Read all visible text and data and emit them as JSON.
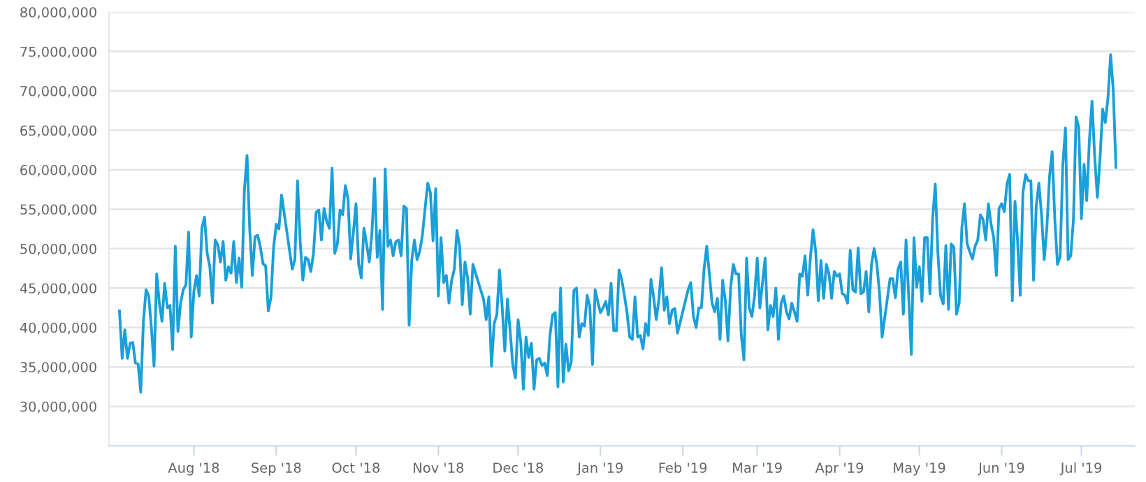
{
  "chart_data": {
    "type": "line",
    "x": [
      "2018-07-04",
      "2018-07-05",
      "2018-07-06",
      "2018-07-07",
      "2018-07-08",
      "2018-07-09",
      "2018-07-10",
      "2018-07-11",
      "2018-07-12",
      "2018-07-13",
      "2018-07-14",
      "2018-07-15",
      "2018-07-16",
      "2018-07-17",
      "2018-07-18",
      "2018-07-19",
      "2018-07-20",
      "2018-07-21",
      "2018-07-22",
      "2018-07-23",
      "2018-07-24",
      "2018-07-25",
      "2018-07-26",
      "2018-07-27",
      "2018-07-28",
      "2018-07-29",
      "2018-07-30",
      "2018-07-31",
      "2018-08-01",
      "2018-08-02",
      "2018-08-03",
      "2018-08-04",
      "2018-08-05",
      "2018-08-06",
      "2018-08-07",
      "2018-08-08",
      "2018-08-09",
      "2018-08-10",
      "2018-08-11",
      "2018-08-12",
      "2018-08-13",
      "2018-08-14",
      "2018-08-15",
      "2018-08-16",
      "2018-08-17",
      "2018-08-18",
      "2018-08-19",
      "2018-08-20",
      "2018-08-21",
      "2018-08-22",
      "2018-08-23",
      "2018-08-24",
      "2018-08-25",
      "2018-08-26",
      "2018-08-27",
      "2018-08-28",
      "2018-08-29",
      "2018-08-30",
      "2018-08-31",
      "2018-09-01",
      "2018-09-02",
      "2018-09-03",
      "2018-09-07",
      "2018-09-08",
      "2018-09-09",
      "2018-09-10",
      "2018-09-11",
      "2018-09-12",
      "2018-09-13",
      "2018-09-14",
      "2018-09-15",
      "2018-09-16",
      "2018-09-17",
      "2018-09-18",
      "2018-09-19",
      "2018-09-20",
      "2018-09-21",
      "2018-09-22",
      "2018-09-23",
      "2018-09-24",
      "2018-09-25",
      "2018-09-26",
      "2018-09-27",
      "2018-09-28",
      "2018-09-29",
      "2018-09-30",
      "2018-10-01",
      "2018-10-02",
      "2018-10-03",
      "2018-10-04",
      "2018-10-05",
      "2018-10-06",
      "2018-10-07",
      "2018-10-08",
      "2018-10-09",
      "2018-10-10",
      "2018-10-11",
      "2018-10-12",
      "2018-10-13",
      "2018-10-14",
      "2018-10-15",
      "2018-10-16",
      "2018-10-17",
      "2018-10-18",
      "2018-10-19",
      "2018-10-20",
      "2018-10-21",
      "2018-10-22",
      "2018-10-23",
      "2018-10-24",
      "2018-10-25",
      "2018-10-26",
      "2018-10-27",
      "2018-10-28",
      "2018-10-29",
      "2018-10-30",
      "2018-10-31",
      "2018-11-01",
      "2018-11-02",
      "2018-11-03",
      "2018-11-04",
      "2018-11-05",
      "2018-11-06",
      "2018-11-07",
      "2018-11-08",
      "2018-11-09",
      "2018-11-10",
      "2018-11-11",
      "2018-11-12",
      "2018-11-13",
      "2018-11-14",
      "2018-11-18",
      "2018-11-19",
      "2018-11-20",
      "2018-11-21",
      "2018-11-22",
      "2018-11-23",
      "2018-11-24",
      "2018-11-25",
      "2018-11-26",
      "2018-11-27",
      "2018-11-28",
      "2018-11-29",
      "2018-11-30",
      "2018-12-01",
      "2018-12-02",
      "2018-12-03",
      "2018-12-04",
      "2018-12-05",
      "2018-12-06",
      "2018-12-07",
      "2018-12-08",
      "2018-12-09",
      "2018-12-10",
      "2018-12-11",
      "2018-12-12",
      "2018-12-13",
      "2018-12-14",
      "2018-12-15",
      "2018-12-16",
      "2018-12-17",
      "2018-12-18",
      "2018-12-19",
      "2018-12-20",
      "2018-12-21",
      "2018-12-22",
      "2018-12-23",
      "2018-12-24",
      "2018-12-25",
      "2018-12-26",
      "2018-12-27",
      "2018-12-28",
      "2018-12-29",
      "2018-12-30",
      "2018-12-31",
      "2019-01-01",
      "2019-01-02",
      "2019-01-03",
      "2019-01-04",
      "2019-01-05",
      "2019-01-06",
      "2019-01-07",
      "2019-01-08",
      "2019-01-09",
      "2019-01-10",
      "2019-01-11",
      "2019-01-12",
      "2019-01-13",
      "2019-01-14",
      "2019-01-15",
      "2019-01-16",
      "2019-01-17",
      "2019-01-18",
      "2019-01-19",
      "2019-01-20",
      "2019-01-21",
      "2019-01-22",
      "2019-01-23",
      "2019-01-24",
      "2019-01-25",
      "2019-01-26",
      "2019-01-27",
      "2019-01-28",
      "2019-01-29",
      "2019-01-30",
      "2019-02-03",
      "2019-02-04",
      "2019-02-05",
      "2019-02-06",
      "2019-02-07",
      "2019-02-08",
      "2019-02-09",
      "2019-02-10",
      "2019-02-11",
      "2019-02-12",
      "2019-02-13",
      "2019-02-14",
      "2019-02-15",
      "2019-02-16",
      "2019-02-17",
      "2019-02-18",
      "2019-02-19",
      "2019-02-20",
      "2019-02-21",
      "2019-02-22",
      "2019-02-23",
      "2019-02-24",
      "2019-02-25",
      "2019-02-26",
      "2019-02-27",
      "2019-02-28",
      "2019-03-01",
      "2019-03-02",
      "2019-03-03",
      "2019-03-04",
      "2019-03-05",
      "2019-03-06",
      "2019-03-07",
      "2019-03-08",
      "2019-03-09",
      "2019-03-10",
      "2019-03-11",
      "2019-03-12",
      "2019-03-13",
      "2019-03-14",
      "2019-03-15",
      "2019-03-16",
      "2019-03-17",
      "2019-03-18",
      "2019-03-19",
      "2019-03-20",
      "2019-03-21",
      "2019-03-22",
      "2019-03-23",
      "2019-03-24",
      "2019-03-25",
      "2019-03-26",
      "2019-03-27",
      "2019-03-28",
      "2019-03-29",
      "2019-03-30",
      "2019-03-31",
      "2019-04-01",
      "2019-04-02",
      "2019-04-03",
      "2019-04-04",
      "2019-04-05",
      "2019-04-06",
      "2019-04-07",
      "2019-04-08",
      "2019-04-09",
      "2019-04-10",
      "2019-04-11",
      "2019-04-12",
      "2019-04-13",
      "2019-04-14",
      "2019-04-15",
      "2019-04-16",
      "2019-04-17",
      "2019-04-20",
      "2019-04-21",
      "2019-04-22",
      "2019-04-23",
      "2019-04-24",
      "2019-04-25",
      "2019-04-26",
      "2019-04-27",
      "2019-04-28",
      "2019-04-29",
      "2019-04-30",
      "2019-05-01",
      "2019-05-02",
      "2019-05-03",
      "2019-05-04",
      "2019-05-05",
      "2019-05-06",
      "2019-05-07",
      "2019-05-08",
      "2019-05-09",
      "2019-05-10",
      "2019-05-11",
      "2019-05-12",
      "2019-05-13",
      "2019-05-14",
      "2019-05-15",
      "2019-05-16",
      "2019-05-17",
      "2019-05-18",
      "2019-05-19",
      "2019-05-20",
      "2019-05-21",
      "2019-05-22",
      "2019-05-23",
      "2019-05-24",
      "2019-05-25",
      "2019-05-26",
      "2019-05-27",
      "2019-05-28",
      "2019-05-29",
      "2019-05-30",
      "2019-05-31",
      "2019-06-01",
      "2019-06-02",
      "2019-06-03",
      "2019-06-04",
      "2019-06-05",
      "2019-06-06",
      "2019-06-07",
      "2019-06-08",
      "2019-06-09",
      "2019-06-10",
      "2019-06-11",
      "2019-06-12",
      "2019-06-13",
      "2019-06-14",
      "2019-06-15",
      "2019-06-16",
      "2019-06-17",
      "2019-06-18",
      "2019-06-19",
      "2019-06-20",
      "2019-06-21",
      "2019-06-22",
      "2019-06-23",
      "2019-06-24",
      "2019-06-25",
      "2019-06-26",
      "2019-06-27",
      "2019-06-28",
      "2019-06-29",
      "2019-06-30",
      "2019-07-01",
      "2019-07-02",
      "2019-07-03",
      "2019-07-04",
      "2019-07-05",
      "2019-07-06",
      "2019-07-07",
      "2019-07-08",
      "2019-07-09",
      "2019-07-10",
      "2019-07-11",
      "2019-07-12",
      "2019-07-13",
      "2019-07-14"
    ],
    "series": [
      {
        "color": "#1a9fd9",
        "values": [
          42100000,
          36100000,
          39700000,
          36100000,
          38000000,
          38100000,
          35500000,
          35400000,
          31800000,
          40800000,
          44800000,
          44000000,
          40000000,
          35100000,
          46800000,
          43100000,
          40800000,
          45600000,
          42500000,
          42800000,
          37200000,
          50300000,
          39500000,
          43100000,
          44800000,
          45400000,
          52100000,
          38800000,
          44600000,
          46600000,
          44000000,
          52600000,
          54000000,
          49400000,
          47700000,
          43100000,
          51100000,
          50500000,
          48300000,
          50900000,
          46000000,
          47700000,
          46900000,
          50900000,
          45700000,
          48800000,
          45100000,
          57400000,
          61800000,
          52500000,
          46600000,
          51500000,
          51700000,
          50200000,
          48100000,
          47800000,
          42100000,
          43800000,
          50200000,
          53100000,
          52500000,
          56800000,
          47400000,
          48600000,
          58600000,
          50900000,
          46000000,
          48900000,
          48600000,
          47100000,
          49400000,
          54600000,
          54900000,
          51100000,
          55100000,
          53400000,
          52600000,
          60200000,
          49400000,
          50600000,
          54900000,
          54300000,
          58000000,
          56300000,
          48700000,
          52000000,
          55700000,
          48000000,
          46300000,
          52600000,
          50600000,
          48300000,
          52000000,
          58900000,
          48900000,
          52300000,
          42300000,
          60100000,
          50300000,
          51100000,
          49100000,
          50900000,
          51100000,
          49100000,
          55400000,
          55100000,
          40300000,
          48600000,
          51100000,
          48600000,
          49700000,
          51700000,
          55100000,
          58300000,
          57100000,
          51000000,
          57600000,
          44000000,
          51400000,
          45700000,
          46600000,
          43100000,
          46000000,
          47400000,
          52300000,
          50300000,
          42900000,
          48300000,
          46300000,
          41700000,
          48000000,
          43600000,
          41000000,
          43900000,
          35100000,
          40500000,
          41600000,
          47300000,
          42700000,
          37000000,
          43600000,
          39600000,
          35300000,
          33600000,
          41000000,
          38200000,
          32200000,
          38800000,
          36200000,
          38000000,
          32200000,
          35900000,
          36100000,
          35200000,
          35500000,
          33900000,
          39000000,
          41600000,
          41900000,
          32500000,
          45000000,
          33100000,
          37900000,
          34500000,
          35600000,
          44700000,
          45000000,
          38800000,
          40500000,
          40200000,
          44100000,
          42700000,
          35300000,
          44800000,
          43300000,
          41900000,
          42500000,
          43300000,
          41600000,
          45600000,
          39600000,
          39600000,
          47300000,
          46100000,
          44100000,
          41900000,
          38800000,
          38500000,
          43900000,
          38800000,
          39000000,
          37300000,
          40500000,
          39000000,
          46100000,
          43900000,
          41000000,
          43600000,
          47600000,
          42200000,
          43900000,
          40500000,
          42200000,
          42400000,
          39300000,
          44800000,
          45700000,
          41400000,
          40000000,
          42500000,
          42500000,
          47400000,
          50300000,
          46800000,
          43100000,
          42000000,
          43700000,
          38500000,
          46000000,
          43400000,
          38300000,
          45100000,
          48000000,
          46800000,
          46800000,
          39100000,
          35900000,
          48800000,
          42500000,
          41400000,
          44000000,
          48800000,
          42500000,
          45700000,
          48800000,
          39700000,
          42800000,
          41400000,
          45000000,
          38500000,
          43100000,
          44000000,
          42000000,
          41100000,
          43100000,
          42000000,
          40800000,
          46800000,
          46500000,
          49100000,
          44100000,
          48800000,
          52400000,
          49700000,
          43400000,
          48500000,
          43700000,
          48000000,
          46800000,
          43700000,
          47100000,
          46500000,
          46800000,
          44300000,
          44100000,
          43100000,
          49800000,
          44800000,
          44500000,
          50100000,
          44300000,
          44500000,
          47100000,
          42000000,
          48000000,
          50000000,
          48100000,
          44500000,
          38800000,
          46200000,
          46200000,
          43800000,
          47400000,
          48300000,
          41700000,
          51100000,
          44000000,
          36600000,
          51400000,
          45100000,
          47700000,
          43300000,
          51400000,
          51400000,
          44300000,
          53700000,
          58200000,
          49400000,
          44000000,
          43000000,
          50400000,
          42300000,
          50600000,
          50200000,
          41700000,
          43100000,
          52600000,
          55700000,
          50600000,
          49600000,
          48700000,
          50300000,
          51100000,
          54300000,
          53700000,
          51100000,
          55700000,
          53100000,
          51400000,
          46600000,
          55100000,
          55700000,
          54700000,
          58200000,
          59400000,
          43400000,
          56000000,
          50900000,
          44100000,
          57100000,
          59400000,
          58600000,
          58600000,
          46000000,
          55400000,
          58300000,
          54300000,
          48600000,
          52600000,
          59100000,
          62300000,
          53700000,
          48000000,
          49000000,
          60600000,
          65300000,
          48600000,
          49100000,
          53700000,
          66700000,
          65400000,
          53800000,
          60700000,
          56100000,
          63700000,
          68700000,
          61700000,
          56500000,
          61400000,
          67700000,
          66000000,
          69100000,
          74600000,
          70000000,
          60300000
        ]
      }
    ],
    "xlim": [
      "2018-06-30",
      "2019-07-21"
    ],
    "xticks": [
      {
        "value": "2018-08-01",
        "label": "Aug '18"
      },
      {
        "value": "2018-09-01",
        "label": "Sep '18"
      },
      {
        "value": "2018-10-01",
        "label": "Oct '18"
      },
      {
        "value": "2018-11-01",
        "label": "Nov '18"
      },
      {
        "value": "2018-12-01",
        "label": "Dec '18"
      },
      {
        "value": "2019-01-01",
        "label": "Jan '19"
      },
      {
        "value": "2019-02-01",
        "label": "Feb '19"
      },
      {
        "value": "2019-03-01",
        "label": "Mar '19"
      },
      {
        "value": "2019-04-01",
        "label": "Apr '19"
      },
      {
        "value": "2019-05-01",
        "label": "May '19"
      },
      {
        "value": "2019-06-01",
        "label": "Jun '19"
      },
      {
        "value": "2019-07-01",
        "label": "Jul '19"
      }
    ],
    "ylim": [
      25000000,
      80000000
    ],
    "yticks": [
      {
        "value": 30000000,
        "label": "30,000,000"
      },
      {
        "value": 35000000,
        "label": "35,000,000"
      },
      {
        "value": 40000000,
        "label": "40,000,000"
      },
      {
        "value": 45000000,
        "label": "45,000,000"
      },
      {
        "value": 50000000,
        "label": "50,000,000"
      },
      {
        "value": 55000000,
        "label": "55,000,000"
      },
      {
        "value": 60000000,
        "label": "60,000,000"
      },
      {
        "value": 65000000,
        "label": "65,000,000"
      },
      {
        "value": 70000000,
        "label": "70,000,000"
      },
      {
        "value": 75000000,
        "label": "75,000,000"
      },
      {
        "value": 80000000,
        "label": "80,000,000"
      }
    ],
    "grid": "y",
    "marker": "none",
    "line_style": "solid",
    "legend": false
  }
}
